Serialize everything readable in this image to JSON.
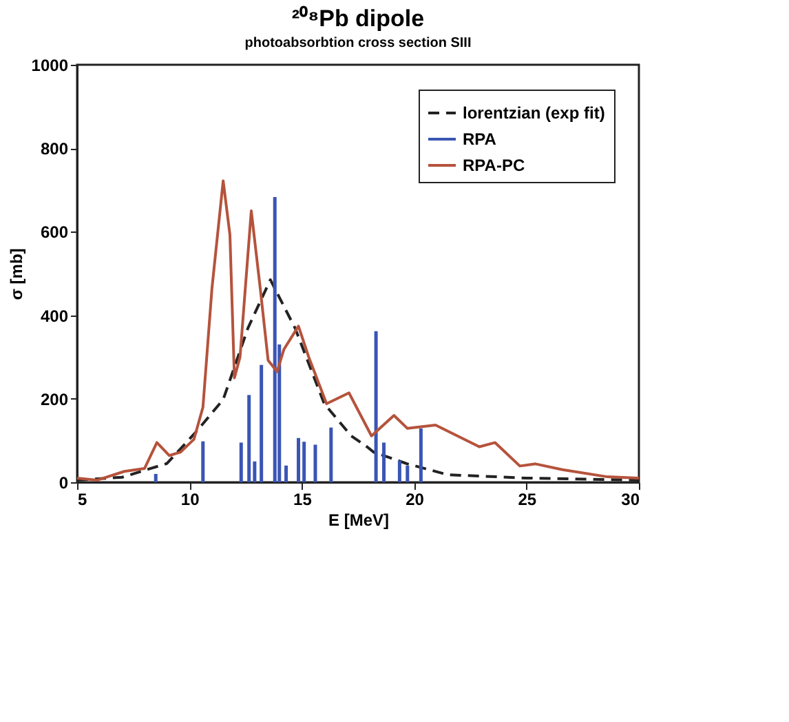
{
  "chart_data": {
    "type": "line",
    "title": "²⁰⁸Pb dipole",
    "subtitle": "photoabsorbtion cross section SIII",
    "xlabel": "E [MeV]",
    "ylabel": "σ [mb]",
    "xlim": [
      5,
      30
    ],
    "xticks": [
      5,
      10,
      15,
      20,
      25,
      30
    ],
    "ylim": [
      0,
      1000
    ],
    "yticks": [
      0,
      200,
      400,
      600,
      800,
      1000
    ],
    "grid": false,
    "legend": "top right",
    "series": [
      {
        "name": "lorentzian (exp fit)",
        "line_style": "dashed",
        "color": "#222222",
        "x": [
          5,
          7,
          9,
          10.3,
          11.5,
          12.6,
          13.6,
          14.7,
          16.0,
          17.2,
          17.9,
          18.2,
          19.7,
          21.5,
          25,
          30
        ],
        "values": [
          5,
          12,
          45,
          121,
          198,
          369,
          485,
          369,
          188,
          111,
          85,
          72,
          44,
          18,
          10,
          5
        ]
      },
      {
        "name": "RPA",
        "type": "bar",
        "color": "#3a55b4",
        "x": [
          8.5,
          10.6,
          12.3,
          12.65,
          12.9,
          13.2,
          13.8,
          14.0,
          14.3,
          14.85,
          15.1,
          15.6,
          16.3,
          18.3,
          18.65,
          19.35,
          19.7,
          20.3
        ],
        "values": [
          20,
          98,
          95,
          209,
          50,
          281,
          683,
          330,
          40,
          106,
          97,
          90,
          131,
          362,
          95,
          52,
          40,
          129
        ]
      },
      {
        "name": "RPA-PC",
        "line_style": "solid",
        "color": "#b5533c",
        "x": [
          5,
          5.9,
          7.1,
          8.0,
          8.55,
          9.1,
          9.6,
          10.2,
          10.6,
          11.0,
          11.5,
          11.8,
          12.0,
          12.25,
          12.75,
          13.15,
          13.5,
          13.9,
          14.2,
          14.85,
          15.3,
          16.1,
          17.1,
          18.1,
          19.1,
          19.7,
          20.95,
          22.9,
          23.6,
          24.7,
          25.4,
          26.6,
          28.6,
          30
        ],
        "values": [
          10,
          5,
          26,
          33,
          95,
          64,
          72,
          103,
          180,
          464,
          722,
          593,
          250,
          300,
          650,
          464,
          292,
          265,
          318,
          374,
          301,
          188,
          214,
          111,
          160,
          129,
          137,
          85,
          95,
          39,
          44,
          30,
          13,
          10
        ]
      }
    ]
  }
}
